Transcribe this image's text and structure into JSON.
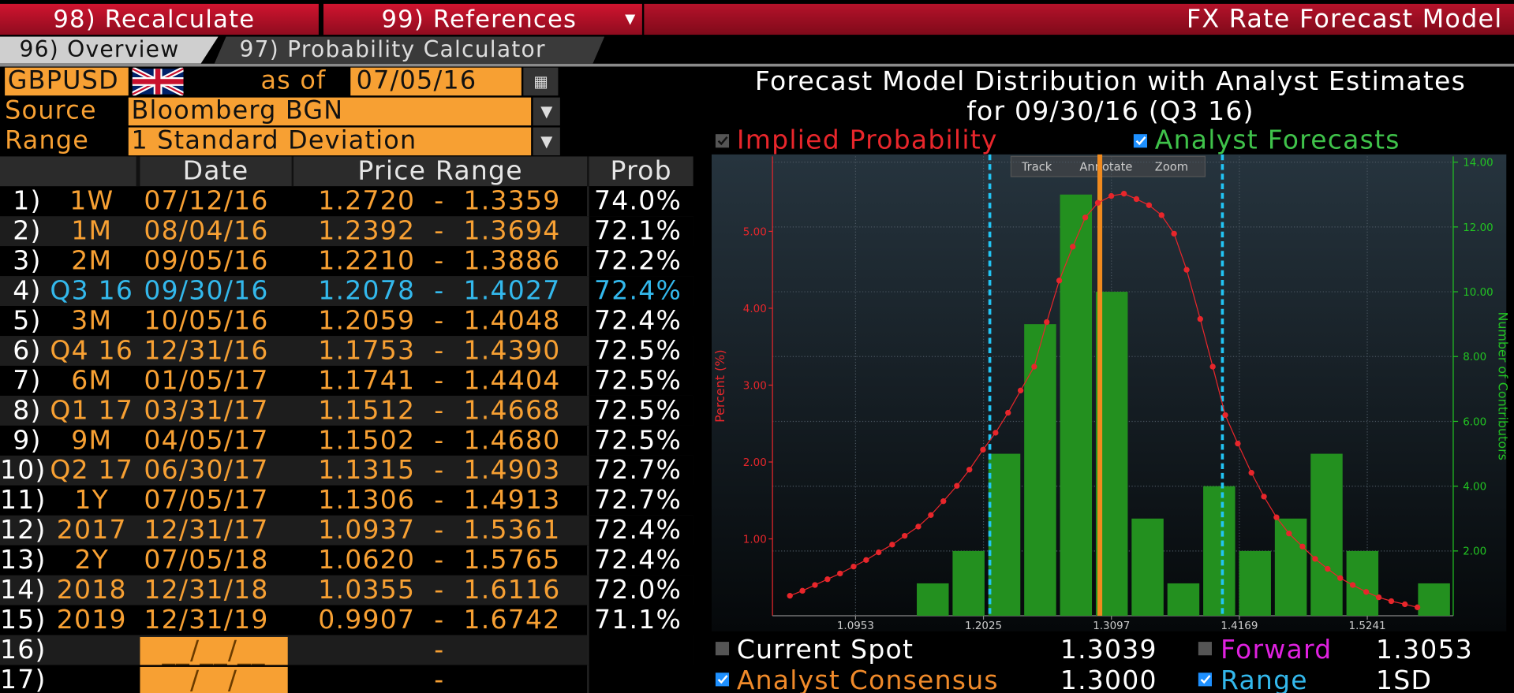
{
  "toolbar": {
    "recalculate": "98) Recalculate",
    "references": "99) References",
    "title": "FX Rate Forecast Model"
  },
  "tabs": [
    "96) Overview",
    "97) Probability Calculator"
  ],
  "form": {
    "pair": "GBPUSD",
    "as_of_label": "as of",
    "as_of": "07/05/16",
    "source_label": "Source",
    "source": "Bloomberg BGN",
    "range_label": "Range",
    "range": "1 Standard Deviation"
  },
  "table": {
    "columns": [
      "Date",
      "Price Range",
      "Prob"
    ],
    "separator": "-",
    "rows": [
      {
        "num": "1)",
        "tenor": "1W",
        "date": "07/12/16",
        "low": "1.2720",
        "high": "1.3359",
        "prob": "74.0%"
      },
      {
        "num": "2)",
        "tenor": "1M",
        "date": "08/04/16",
        "low": "1.2392",
        "high": "1.3694",
        "prob": "72.1%"
      },
      {
        "num": "3)",
        "tenor": "2M",
        "date": "09/05/16",
        "low": "1.2210",
        "high": "1.3886",
        "prob": "72.2%"
      },
      {
        "num": "4)",
        "tenor": "Q3 16",
        "date": "09/30/16",
        "low": "1.2078",
        "high": "1.4027",
        "prob": "72.4%",
        "color": "#33b8ec"
      },
      {
        "num": "5)",
        "tenor": "3M",
        "date": "10/05/16",
        "low": "1.2059",
        "high": "1.4048",
        "prob": "72.4%"
      },
      {
        "num": "6)",
        "tenor": "Q4 16",
        "date": "12/31/16",
        "low": "1.1753",
        "high": "1.4390",
        "prob": "72.5%"
      },
      {
        "num": "7)",
        "tenor": "6M",
        "date": "01/05/17",
        "low": "1.1741",
        "high": "1.4404",
        "prob": "72.5%"
      },
      {
        "num": "8)",
        "tenor": "Q1 17",
        "date": "03/31/17",
        "low": "1.1512",
        "high": "1.4668",
        "prob": "72.5%"
      },
      {
        "num": "9)",
        "tenor": "9M",
        "date": "04/05/17",
        "low": "1.1502",
        "high": "1.4680",
        "prob": "72.5%"
      },
      {
        "num": "10)",
        "tenor": "Q2 17",
        "date": "06/30/17",
        "low": "1.1315",
        "high": "1.4903",
        "prob": "72.7%"
      },
      {
        "num": "11)",
        "tenor": "1Y",
        "date": "07/05/17",
        "low": "1.1306",
        "high": "1.4913",
        "prob": "72.7%"
      },
      {
        "num": "12)",
        "tenor": "2017",
        "date": "12/31/17",
        "low": "1.0937",
        "high": "1.5361",
        "prob": "72.4%"
      },
      {
        "num": "13)",
        "tenor": "2Y",
        "date": "07/05/18",
        "low": "1.0620",
        "high": "1.5765",
        "prob": "72.4%"
      },
      {
        "num": "14)",
        "tenor": "2018",
        "date": "12/31/18",
        "low": "1.0355",
        "high": "1.6116",
        "prob": "72.0%"
      },
      {
        "num": "15)",
        "tenor": "2019",
        "date": "12/31/19",
        "low": "0.9907",
        "high": "1.6742",
        "prob": "71.1%"
      },
      {
        "num": "16)",
        "date": "__/__/__"
      },
      {
        "num": "17)",
        "date": "__/__/__"
      }
    ]
  },
  "chart": {
    "title": "Forecast Model Distribution with Analyst Estimates",
    "subtitle": "for  09/30/16 (Q3 16)",
    "y_label": "Percent (%)",
    "y2_label": "Number of Contributors",
    "toolbar": [
      "Track",
      "Annotate",
      "Zoom"
    ],
    "xlim": [
      1.0257,
      1.5961
    ],
    "xticks": [
      1.0953,
      1.2025,
      1.3097,
      1.4169,
      1.5241
    ],
    "ylim": [
      0,
      5.9
    ],
    "yticks": [
      {
        "value": 1,
        "label": "1.00"
      },
      {
        "value": 2,
        "label": "2.00"
      },
      {
        "value": 3,
        "label": "3.00"
      },
      {
        "value": 4,
        "label": "4.00"
      },
      {
        "value": 5,
        "label": "5.00"
      }
    ],
    "y2lim": [
      0,
      14
    ],
    "y2ticks": [
      {
        "value": 2,
        "label": "2.00"
      },
      {
        "value": 4,
        "label": "4.00"
      },
      {
        "value": 6,
        "label": "6.00"
      },
      {
        "value": 8,
        "label": "8.00"
      },
      {
        "value": 10,
        "label": "10.00"
      },
      {
        "value": 12,
        "label": "12.00"
      },
      {
        "value": 14,
        "label": "14.00"
      }
    ],
    "grid": true,
    "series": [
      {
        "name": "Implied Probability",
        "type": "line",
        "color": "#e8262b",
        "x": [
          1.0403,
          1.0508,
          1.0613,
          1.0718,
          1.0823,
          1.0937,
          1.1042,
          1.1147,
          1.126,
          1.1365,
          1.1479,
          1.1584,
          1.1689,
          1.1802,
          1.1907,
          1.2021,
          1.2126,
          1.2231,
          1.2336,
          1.245,
          1.2555,
          1.266,
          1.2773,
          1.2878,
          1.2983,
          1.3096,
          1.3202,
          1.3307,
          1.3412,
          1.3517,
          1.3622,
          1.3727,
          1.3841,
          1.3946,
          1.4051,
          1.4156,
          1.427,
          1.4375,
          1.448,
          1.4585,
          1.4698,
          1.4804,
          1.4909,
          1.5014,
          1.5119,
          1.5232,
          1.5337,
          1.5442,
          1.5556,
          1.5661
        ],
        "values": [
          0.26,
          0.325,
          0.4,
          0.475,
          0.55,
          0.64,
          0.725,
          0.825,
          0.925,
          1.04,
          1.16,
          1.31,
          1.49,
          1.69,
          1.9,
          2.16,
          2.38,
          2.64,
          2.93,
          3.24,
          3.82,
          4.36,
          4.8,
          5.18,
          5.37,
          5.46,
          5.49,
          5.42,
          5.34,
          5.21,
          4.97,
          4.5,
          3.86,
          3.24,
          2.61,
          2.24,
          1.86,
          1.55,
          1.28,
          1.07,
          0.9,
          0.74,
          0.61,
          0.49,
          0.4,
          0.31,
          0.24,
          0.19,
          0.15,
          0.11
        ]
      },
      {
        "name": "Analyst Forecasts",
        "type": "histogram",
        "axis": "y2",
        "color": "#23901f",
        "bins": [
          1.145,
          1.175,
          1.205,
          1.235,
          1.265,
          1.295,
          1.325,
          1.355,
          1.385,
          1.415,
          1.445,
          1.475,
          1.505,
          1.535,
          1.565,
          1.595
        ],
        "values": [
          1,
          2,
          5,
          9,
          13,
          10,
          3,
          1,
          4,
          2,
          3,
          5,
          2,
          0,
          1
        ]
      }
    ]
  },
  "footer": [
    {
      "label": "Current Spot",
      "value": "1.3039"
    },
    {
      "label": "Forward",
      "value": "1.3053"
    },
    {
      "label": "Analyst Consensus",
      "value": {
        "value": 1.3,
        "label": "1.3000"
      }
    },
    {
      "label": "Range",
      "value": "1SD"
    }
  ]
}
